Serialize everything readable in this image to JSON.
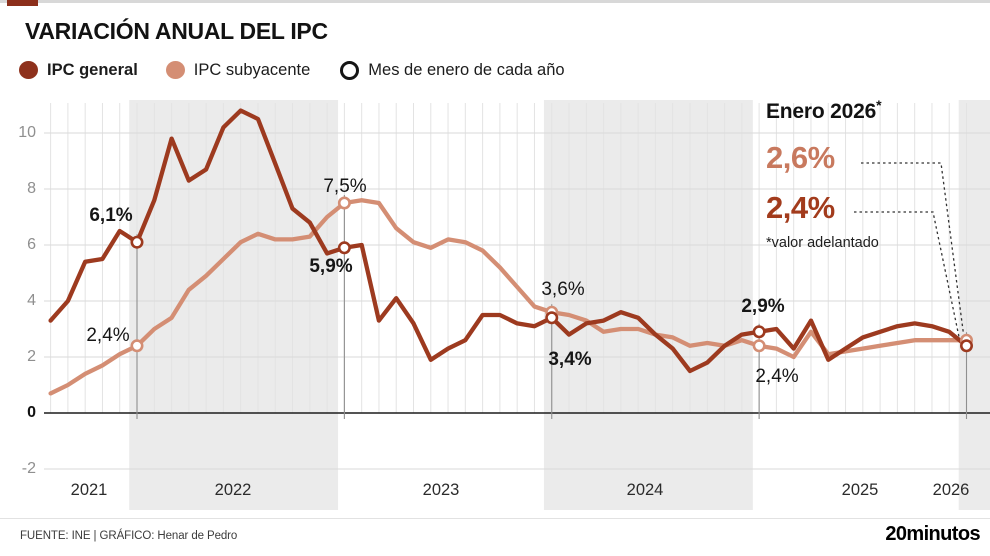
{
  "header": {
    "title": "VARIACIÓN ANUAL DEL IPC"
  },
  "legend": [
    {
      "label": "IPC general",
      "type": "dot",
      "color": "#8e311c",
      "bold": true
    },
    {
      "label": "IPC subyacente",
      "type": "dot",
      "color": "#d48e74",
      "bold": false
    },
    {
      "label": "Mes de enero de cada año",
      "type": "ring",
      "color": "#151515",
      "bold": false
    }
  ],
  "chart_data": {
    "type": "line",
    "title": "Variación anual del IPC",
    "unit": "%",
    "start_month": "2021-08",
    "end_month": "2026-01",
    "x_years": [
      "2021",
      "2022",
      "2023",
      "2024",
      "2025",
      "2026"
    ],
    "yticks": [
      10,
      8,
      6,
      4,
      2,
      0,
      -2
    ],
    "ylim": [
      -2.8,
      11
    ],
    "grid": true,
    "shaded_years": [
      "2022",
      "2024",
      "2026"
    ],
    "series": [
      {
        "name": "IPC general",
        "color": "#9d3a1f",
        "values": [
          3.3,
          4.0,
          5.4,
          5.5,
          6.5,
          6.1,
          7.6,
          9.8,
          8.3,
          8.7,
          10.2,
          10.8,
          10.5,
          8.9,
          7.3,
          6.8,
          5.7,
          5.9,
          6.0,
          3.3,
          4.1,
          3.2,
          1.9,
          2.3,
          2.6,
          3.5,
          3.5,
          3.2,
          3.1,
          3.4,
          2.8,
          3.2,
          3.3,
          3.6,
          3.4,
          2.8,
          2.3,
          1.5,
          1.8,
          2.4,
          2.8,
          2.9,
          3.0,
          2.3,
          3.3,
          1.9,
          2.3,
          2.7,
          2.9,
          3.1,
          3.2,
          3.1,
          2.9,
          2.4
        ]
      },
      {
        "name": "IPC subyacente",
        "color": "#d48e74",
        "values": [
          0.7,
          1.0,
          1.4,
          1.7,
          2.1,
          2.4,
          3.0,
          3.4,
          4.4,
          4.9,
          5.5,
          6.1,
          6.4,
          6.2,
          6.2,
          6.3,
          7.0,
          7.5,
          7.6,
          7.5,
          6.6,
          6.1,
          5.9,
          6.2,
          6.1,
          5.8,
          5.2,
          4.5,
          3.8,
          3.6,
          3.5,
          3.3,
          2.9,
          3.0,
          3.0,
          2.8,
          2.7,
          2.4,
          2.5,
          2.4,
          2.6,
          2.4,
          2.3,
          2.0,
          2.9,
          2.1,
          2.2,
          2.3,
          2.4,
          2.5,
          2.6,
          2.6,
          2.6,
          2.6
        ]
      }
    ],
    "january_markers": [
      "2022-01",
      "2023-01",
      "2024-01",
      "2025-01",
      "2026-01"
    ],
    "annotations": [
      {
        "month": "2022-01",
        "series": "IPC general",
        "label": "6,1%"
      },
      {
        "month": "2022-01",
        "series": "IPC subyacente",
        "label": "2,4%"
      },
      {
        "month": "2023-01",
        "series": "IPC subyacente",
        "label": "7,5%"
      },
      {
        "month": "2023-01",
        "series": "IPC general",
        "label": "5,9%"
      },
      {
        "month": "2024-01",
        "series": "IPC subyacente",
        "label": "3,6%"
      },
      {
        "month": "2024-01",
        "series": "IPC general",
        "label": "3,4%"
      },
      {
        "month": "2025-01",
        "series": "IPC general",
        "label": "2,9%"
      },
      {
        "month": "2025-01",
        "series": "IPC subyacente",
        "label": "2,4%"
      }
    ]
  },
  "callout": {
    "title": "Enero 2026",
    "asterisk": "*",
    "subyacente_value": "2,6%",
    "general_value": "2,4%",
    "subyacente_color": "#c8795e",
    "general_color": "#a23b1c",
    "note": "*valor adelantado"
  },
  "footer": {
    "source": "FUENTE: INE  |  GRÁFICO: Henar de Pedro",
    "brand": "20minutos"
  }
}
